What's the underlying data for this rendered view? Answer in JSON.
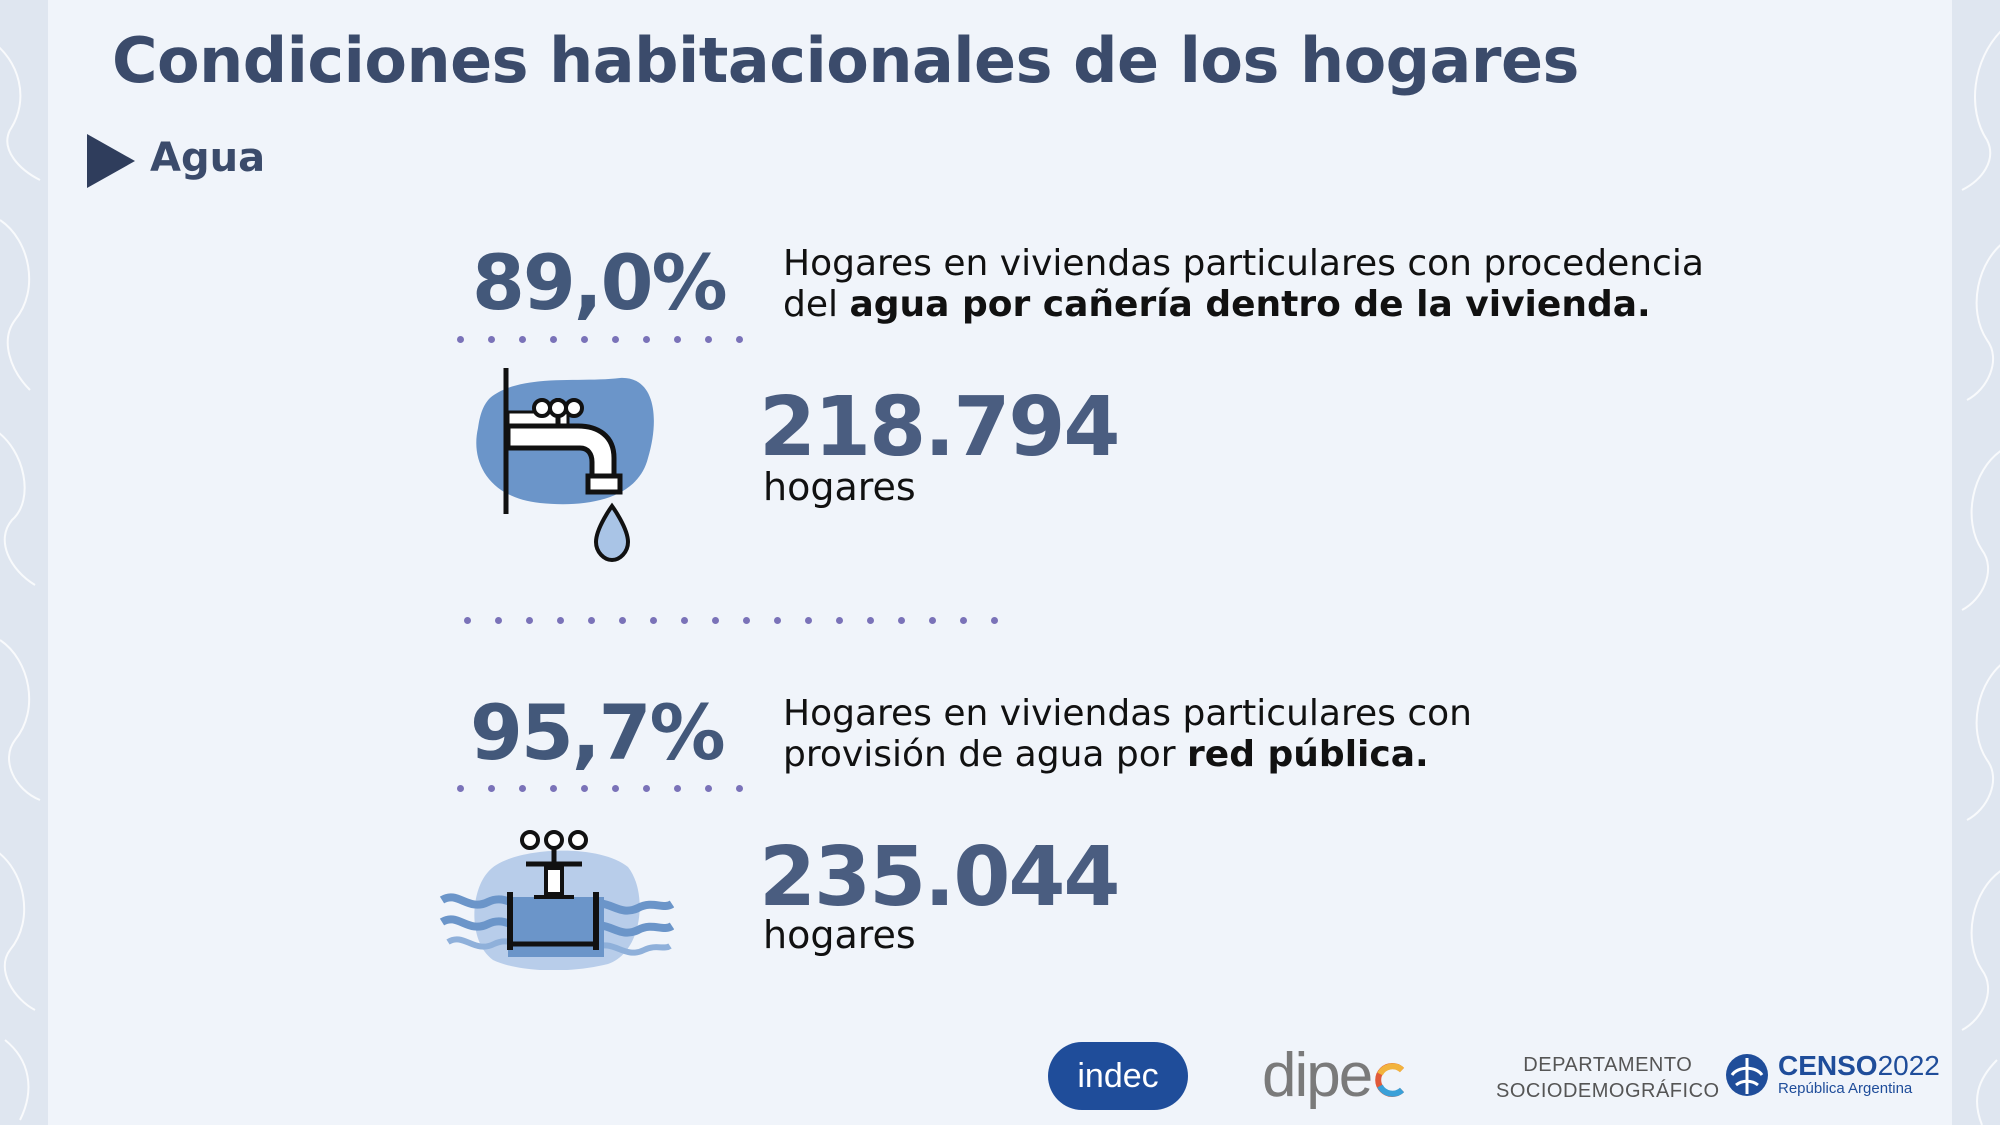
{
  "page": {
    "title": "Condiciones habitacionales de los hogares",
    "section": "Agua"
  },
  "indicators": [
    {
      "percent": "89,0%",
      "desc_plain_1": "Hogares en viviendas particulares con procedencia",
      "desc_plain_2": "del ",
      "desc_bold": "agua por cañería dentro de la vivienda.",
      "count": "218.794",
      "unit": "hogares",
      "icon": "faucet-icon"
    },
    {
      "percent": "95,7%",
      "desc_plain_1": "Hogares en viviendas particulares con",
      "desc_plain_2": "provisión de agua por ",
      "desc_bold": "red pública.",
      "count": "235.044",
      "unit": "hogares",
      "icon": "water-pipe-icon"
    }
  ],
  "logos": {
    "indec": "indec",
    "dipec": "dipe",
    "depto_line1": "DEPARTAMENTO",
    "depto_line2": "SOCIODEMOGRÁFICO",
    "censo_main": "CENSO",
    "censo_year": "2022",
    "censo_sub": "República Argentina"
  },
  "colors": {
    "title": "#3b4b6b",
    "accent_dots": "#7a72b8",
    "icon_blue": "#6b95c9",
    "logo_blue": "#1f4d9a"
  }
}
